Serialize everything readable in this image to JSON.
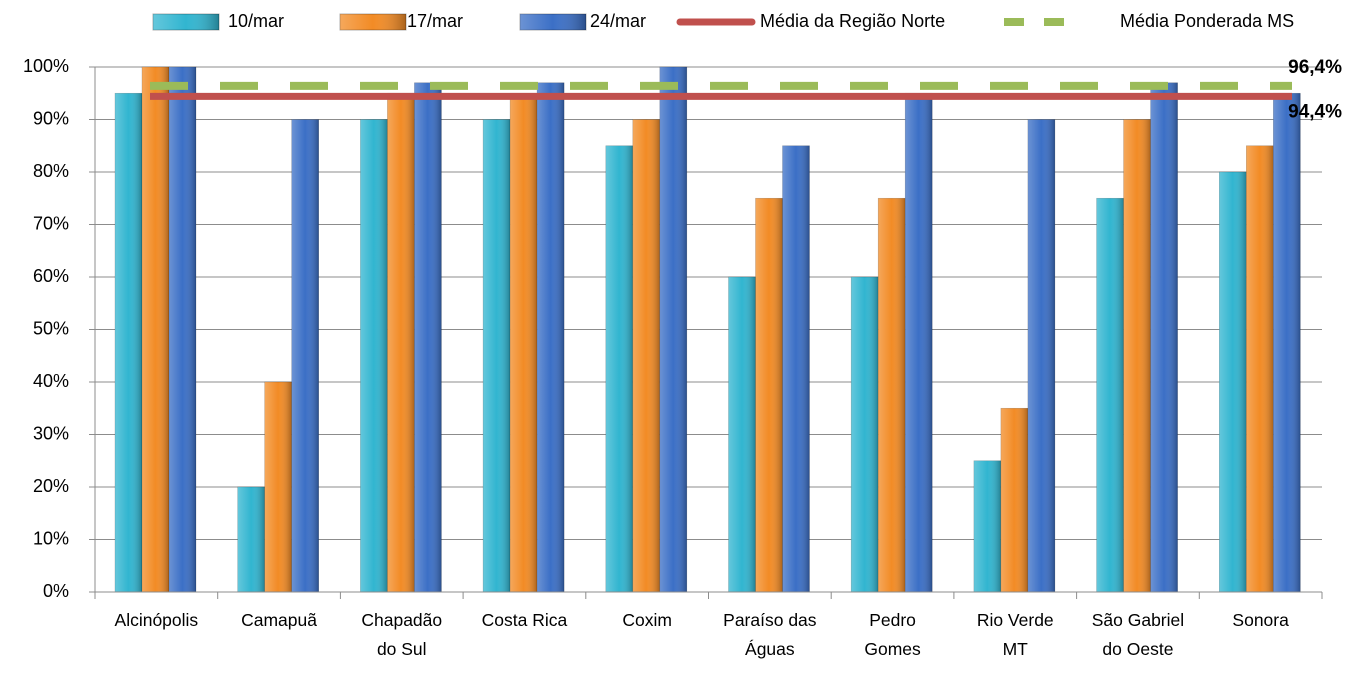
{
  "chart_data": {
    "type": "bar",
    "categories": [
      "Alcinópolis",
      "Camapuã",
      "Chapadão do Sul",
      "Costa Rica",
      "Coxim",
      "Paraíso das Águas",
      "Pedro Gomes",
      "Rio Verde MT",
      "São Gabriel do Oeste",
      "Sonora"
    ],
    "series": [
      {
        "name": "10/mar",
        "color": "#31b5d0",
        "values": [
          95,
          20,
          90,
          90,
          85,
          60,
          60,
          25,
          75,
          80
        ]
      },
      {
        "name": "17/mar",
        "color": "#f28b25",
        "values": [
          100,
          40,
          95,
          95,
          90,
          75,
          75,
          35,
          90,
          85
        ]
      },
      {
        "name": "24/mar",
        "color": "#3b6fc6",
        "values": [
          100,
          90,
          97,
          97,
          100,
          85,
          95,
          90,
          97,
          95
        ]
      }
    ],
    "reference_lines": [
      {
        "name": "Média da Região Norte",
        "color": "#c0504d",
        "style": "solid",
        "values": [
          94.4
        ],
        "value_labels": [
          "94,4%"
        ]
      },
      {
        "name": "Média Ponderada MS",
        "color": "#9bbb59",
        "style": "dashed",
        "values": [
          96.4
        ],
        "value_labels": [
          "96,4%"
        ]
      }
    ],
    "ylim": [
      0,
      100
    ],
    "yticks": [
      {
        "value": 0,
        "label": "0%"
      },
      {
        "value": 10,
        "label": "10%"
      },
      {
        "value": 20,
        "label": "20%"
      },
      {
        "value": 30,
        "label": "30%"
      },
      {
        "value": 40,
        "label": "40%"
      },
      {
        "value": 50,
        "label": "50%"
      },
      {
        "value": 60,
        "label": "60%"
      },
      {
        "value": 70,
        "label": "70%"
      },
      {
        "value": 80,
        "label": "80%"
      },
      {
        "value": 90,
        "label": "90%"
      },
      {
        "value": 100,
        "label": "100%"
      }
    ],
    "grid": true,
    "legend": "top"
  }
}
